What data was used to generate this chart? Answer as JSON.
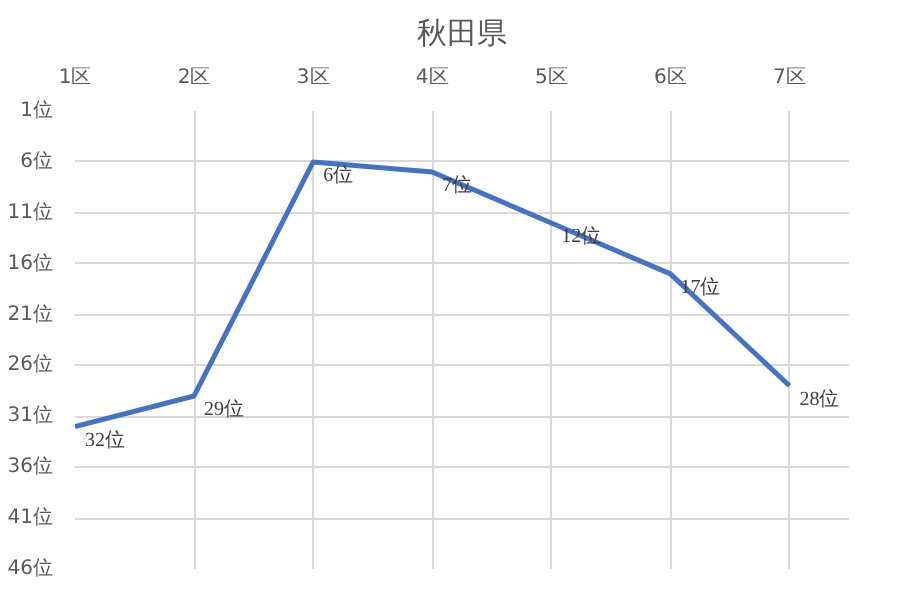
{
  "chart_data": {
    "type": "line",
    "title": "秋田県",
    "categories": [
      "1区",
      "2区",
      "3区",
      "4区",
      "5区",
      "6区",
      "7区"
    ],
    "series": [
      {
        "color": "#4472c4",
        "values": [
          32,
          29,
          6,
          7,
          12,
          17,
          28
        ],
        "value_labels": [
          "32位",
          "29位",
          "6位",
          "7位",
          "12位",
          "17位",
          "28位"
        ]
      }
    ],
    "ylim": [
      46,
      1
    ],
    "yticks": [
      {
        "value": 1,
        "label": "1位"
      },
      {
        "value": 6,
        "label": "6位"
      },
      {
        "value": 11,
        "label": "11位"
      },
      {
        "value": 16,
        "label": "16位"
      },
      {
        "value": 21,
        "label": "21位"
      },
      {
        "value": 26,
        "label": "26位"
      },
      {
        "value": 31,
        "label": "31位"
      },
      {
        "value": 36,
        "label": "36位"
      },
      {
        "value": 41,
        "label": "41位"
      },
      {
        "value": 46,
        "label": "46位"
      }
    ],
    "grid": true,
    "marker": "none",
    "line_style": "solid"
  }
}
